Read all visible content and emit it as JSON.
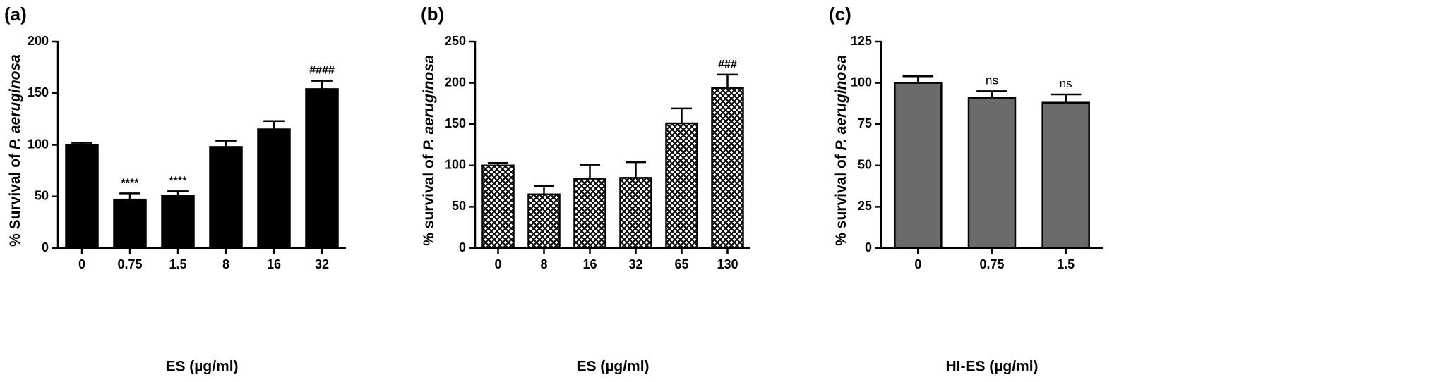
{
  "chart_data": [
    {
      "panel": "(a)",
      "type": "bar",
      "categories": [
        "0",
        "0.75",
        "1.5",
        "8",
        "16",
        "32"
      ],
      "values": [
        100,
        47,
        51,
        98,
        115,
        154
      ],
      "errors": [
        2,
        6,
        4,
        6,
        8,
        8
      ],
      "annotations": [
        "",
        "****",
        "****",
        "",
        "",
        "####"
      ],
      "xlabel": "ES (µg/ml)",
      "ylabel_prefix": "% Survival of ",
      "ylabel_italic": "P. aeruginosa",
      "ylim": [
        0,
        200
      ],
      "yticks": [
        0,
        50,
        100,
        150,
        200
      ],
      "fill": "solid",
      "color": "#000000"
    },
    {
      "panel": "(b)",
      "type": "bar",
      "categories": [
        "0",
        "8",
        "16",
        "32",
        "65",
        "130"
      ],
      "values": [
        100,
        65,
        84,
        85,
        151,
        194
      ],
      "errors": [
        3,
        10,
        17,
        19,
        18,
        16
      ],
      "annotations": [
        "",
        "",
        "",
        "",
        "",
        "###"
      ],
      "xlabel": "ES (µg/ml)",
      "ylabel_prefix": "% survival of ",
      "ylabel_italic": "P. aeruginosa",
      "ylim": [
        0,
        250
      ],
      "yticks": [
        0,
        50,
        100,
        150,
        200,
        250
      ],
      "fill": "crosshatch",
      "color": "#000000"
    },
    {
      "panel": "(c)",
      "type": "bar",
      "categories": [
        "0",
        "0.75",
        "1.5"
      ],
      "values": [
        100,
        91,
        88
      ],
      "errors": [
        4,
        4,
        5
      ],
      "annotations": [
        "",
        "ns",
        "ns"
      ],
      "xlabel": "HI-ES (µg/ml)",
      "ylabel_prefix": "% survival of ",
      "ylabel_italic": "P. aeruginosa",
      "ylim": [
        0,
        125
      ],
      "yticks": [
        0,
        25,
        50,
        75,
        100,
        125
      ],
      "fill": "solid",
      "color": "#6b6b6b"
    }
  ]
}
